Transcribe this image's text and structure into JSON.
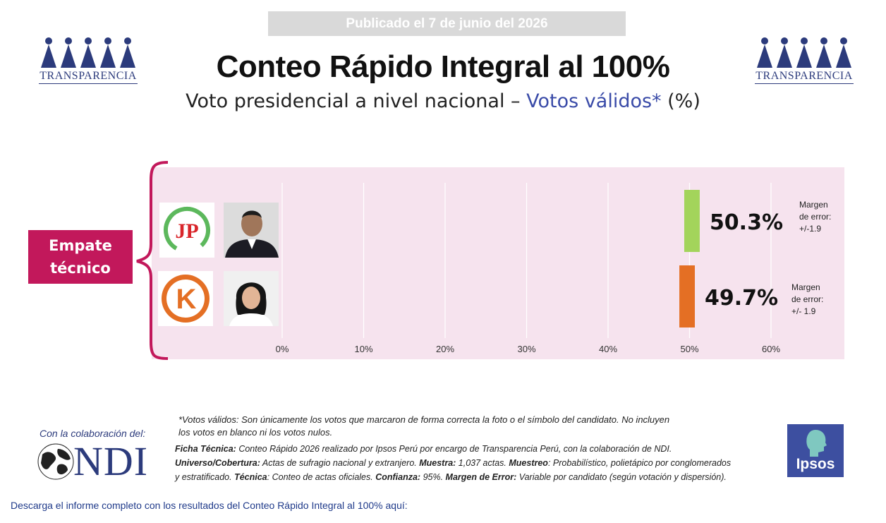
{
  "header": {
    "published": "Publicado el 7 de junio del 2026",
    "title": "Conteo Rápido Integral al 100%",
    "subtitle_main": "Voto presidencial a nivel nacional – ",
    "subtitle_accent": "Votos válidos*",
    "subtitle_tail": " (%)",
    "logo_text": "TRANSPARENCIA"
  },
  "badge": {
    "line1": "Empate",
    "line2": "técnico"
  },
  "chart_data": {
    "type": "bar",
    "orientation": "horizontal",
    "x_ticks": [
      "0%",
      "10%",
      "20%",
      "30%",
      "40%",
      "50%",
      "60%"
    ],
    "xlim": [
      0,
      60
    ],
    "grid": true,
    "bars": [
      {
        "party_logo": "JP",
        "value": 50.3,
        "label": "50.3%",
        "error": 1.9,
        "margin_lines": [
          "Margen",
          "de error:",
          "+/-1.9"
        ],
        "color": "#a3d45b"
      },
      {
        "party_logo": "K",
        "value": 49.7,
        "label": "49.7%",
        "error": 1.9,
        "margin_lines": [
          "Margen",
          "de error:",
          "+/- 1.9"
        ],
        "color": "#e46f24"
      }
    ]
  },
  "footer": {
    "votos_note_line1": "*Votos válidos: Son únicamente los votos que marcaron de forma correcta la foto o el símbolo del candidato. No incluyen",
    "votos_note_line2": "los votos en blanco ni los votos nulos.",
    "collab_label": "Con la colaboración del:",
    "ndi_text": "NDI",
    "ficha_label": "Ficha Técnica:",
    "ficha_text": " Conteo Rápido 2026 realizado por Ipsos Perú por encargo de Transparencia Perú, con la colaboración de NDI.",
    "universo_label": "Universo/Cobertura:",
    "universo_text": " Actas de sufragio nacional y extranjero. ",
    "muestra_label": "Muestra:",
    "muestra_text": " 1,037 actas. ",
    "muestreo_label": "Muestreo",
    "muestreo_text": ": Probabilístico, polietápico por conglomerados",
    "line3_start": "y estratificado. ",
    "tecnica_label": "Técnica",
    "tecnica_text": ": Conteo de actas oficiales. ",
    "confianza_label": "Confianza:",
    "confianza_text": " 95%. ",
    "margen_label": "Margen de Error:",
    "margen_text": " Variable por candidato (según votación y dispersión).",
    "ipsos_text": "Ipsos",
    "download": "Descarga el informe completo con los resultados del Conteo Rápido Integral al 100% aquí:"
  },
  "colors": {
    "accent_blue": "#3a4ba8",
    "badge_magenta": "#c2185b",
    "panel_pink": "#f6e3ee",
    "bar_green": "#a3d45b",
    "bar_orange": "#e46f24"
  }
}
